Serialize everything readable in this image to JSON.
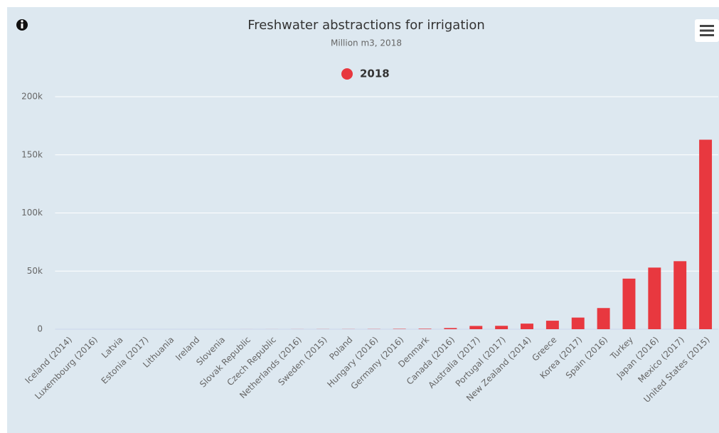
{
  "chart_data": {
    "type": "bar",
    "title": "Freshwater abstractions for irrigation",
    "subtitle": "Million m3, 2018",
    "categories": [
      "Iceland (2014)",
      "Luxembourg (2016)",
      "Latvia",
      "Estonia (2017)",
      "Lithuania",
      "Ireland",
      "Slovenia",
      "Slovak Republic",
      "Czech Republic",
      "Netherlands (2016)",
      "Sweden (2015)",
      "Poland",
      "Hungary (2016)",
      "Germany (2016)",
      "Denmark",
      "Canada (2016)",
      "Australia (2017)",
      "Portugal (2017)",
      "New Zealand (2014)",
      "Greece",
      "Korea (2017)",
      "Spain (2016)",
      "Turkey",
      "Japan (2016)",
      "Mexico (2017)",
      "United States (2015)"
    ],
    "series": [
      {
        "name": "2018",
        "color": "#e8383f",
        "values": [
          0,
          0,
          1,
          2,
          4,
          5,
          6,
          20,
          30,
          60,
          90,
          100,
          150,
          300,
          400,
          1000,
          2800,
          2900,
          4800,
          7300,
          10000,
          18200,
          43500,
          53000,
          58500,
          163000
        ]
      }
    ],
    "ylim": [
      0,
      200000
    ],
    "yticks": [
      0,
      {
        "value": 50000,
        "label": "50k"
      },
      {
        "value": 100000,
        "label": "100k"
      },
      {
        "value": 150000,
        "label": "150k"
      },
      {
        "value": 200000,
        "label": "200k"
      }
    ],
    "grid": true,
    "legend": "top"
  }
}
